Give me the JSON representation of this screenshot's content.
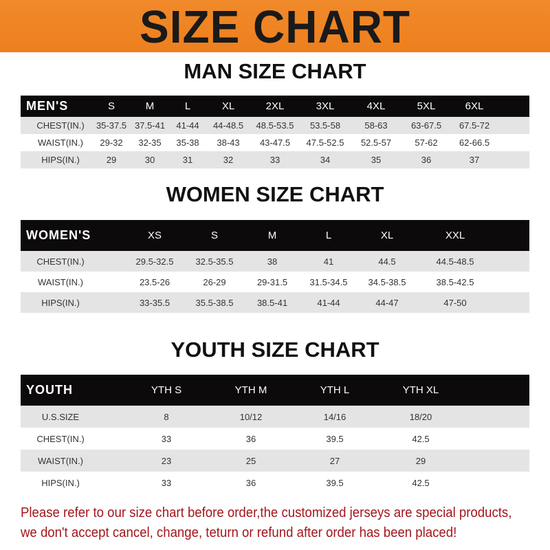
{
  "banner": {
    "title": "SIZE CHART",
    "color": "#ee7f1e"
  },
  "men": {
    "title": "MAN SIZE CHART",
    "header": [
      "MEN'S",
      "S",
      "M",
      "L",
      "XL",
      "2XL",
      "3XL",
      "4XL",
      "5XL",
      "6XL"
    ],
    "rows": [
      [
        "CHEST(IN.)",
        "35-37.5",
        "37.5-41",
        "41-44",
        "44-48.5",
        "48.5-53.5",
        "53.5-58",
        "58-63",
        "63-67.5",
        "67.5-72"
      ],
      [
        "WAIST(IN.)",
        "29-32",
        "32-35",
        "35-38",
        "38-43",
        "43-47.5",
        "47.5-52.5",
        "52.5-57",
        "57-62",
        "62-66.5"
      ],
      [
        "HIPS(IN.)",
        "29",
        "30",
        "31",
        "32",
        "33",
        "34",
        "35",
        "36",
        "37"
      ]
    ]
  },
  "women": {
    "title": "WOMEN SIZE CHART",
    "header": [
      "WOMEN'S",
      "XS",
      "S",
      "M",
      "L",
      "XL",
      "XXL"
    ],
    "rows": [
      [
        "CHEST(IN.)",
        "29.5-32.5",
        "32.5-35.5",
        "38",
        "41",
        "44.5",
        "44.5-48.5"
      ],
      [
        "WAIST(IN.)",
        "23.5-26",
        "26-29",
        "29-31.5",
        "31.5-34.5",
        "34.5-38.5",
        "38.5-42.5"
      ],
      [
        "HIPS(IN.)",
        "33-35.5",
        "35.5-38.5",
        "38.5-41",
        "41-44",
        "44-47",
        "47-50"
      ]
    ]
  },
  "youth": {
    "title": "YOUTH SIZE CHART",
    "header": [
      "YOUTH",
      "YTH S",
      "YTH M",
      "YTH L",
      "YTH XL"
    ],
    "rows": [
      [
        "U.S.SIZE",
        "8",
        "10/12",
        "14/16",
        "18/20"
      ],
      [
        "CHEST(IN.)",
        "33",
        "36",
        "39.5",
        "42.5"
      ],
      [
        "WAIST(IN.)",
        "23",
        "25",
        "27",
        "29"
      ],
      [
        "HIPS(IN.)",
        "33",
        "36",
        "39.5",
        "42.5"
      ]
    ]
  },
  "notice": {
    "line1": "Please refer to our size chart before order,the customized jerseys are special products,",
    "line2": "we don't accept cancel, change, teturn or refund after order has been placed!",
    "color": "#a3161b"
  }
}
